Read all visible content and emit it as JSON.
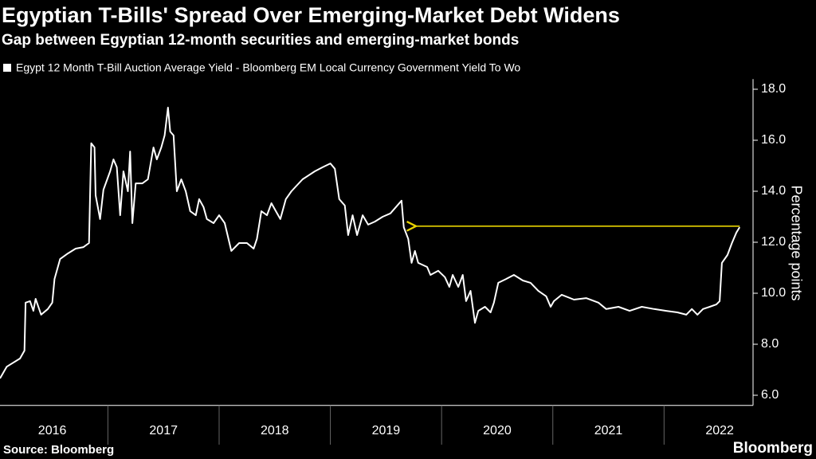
{
  "chart_data": {
    "type": "line",
    "title": "Egyptian T-Bills' Spread Over Emerging-Market Debt Widens",
    "subtitle": "Gap between Egyptian 12-month securities and emerging-market bonds",
    "y_label": "Percentage points",
    "x": [
      2016.03,
      2016.09,
      2016.21,
      2016.25,
      2016.26,
      2016.3,
      2016.33,
      2016.35,
      2016.4,
      2016.46,
      2016.5,
      2016.52,
      2016.57,
      2016.64,
      2016.71,
      2016.78,
      2016.83,
      2016.85,
      2016.88,
      2016.89,
      2016.93,
      2016.96,
      2017.02,
      2017.05,
      2017.08,
      2017.11,
      2017.14,
      2017.18,
      2017.2,
      2017.22,
      2017.25,
      2017.31,
      2017.36,
      2017.41,
      2017.44,
      2017.48,
      2017.51,
      2017.54,
      2017.56,
      2017.59,
      2017.62,
      2017.66,
      2017.7,
      2017.74,
      2017.79,
      2017.82,
      2017.86,
      2017.89,
      2017.95,
      2018.0,
      2018.05,
      2018.11,
      2018.18,
      2018.25,
      2018.31,
      2018.34,
      2018.38,
      2018.43,
      2018.47,
      2018.51,
      2018.55,
      2018.6,
      2018.65,
      2018.75,
      2018.86,
      2018.93,
      2019.0,
      2019.04,
      2019.08,
      2019.13,
      2019.16,
      2019.2,
      2019.24,
      2019.29,
      2019.34,
      2019.4,
      2019.47,
      2019.54,
      2019.59,
      2019.64,
      2019.66,
      2019.7,
      2019.73,
      2019.76,
      2019.79,
      2019.87,
      2019.9,
      2019.97,
      2020.03,
      2020.07,
      2020.1,
      2020.15,
      2020.19,
      2020.22,
      2020.26,
      2020.3,
      2020.33,
      2020.39,
      2020.44,
      2020.47,
      2020.51,
      2020.58,
      2020.65,
      2020.73,
      2020.8,
      2020.87,
      2020.94,
      2020.98,
      2021.01,
      2021.08,
      2021.19,
      2021.3,
      2021.41,
      2021.48,
      2021.59,
      2021.69,
      2021.8,
      2021.91,
      2022.02,
      2022.12,
      2022.2,
      2022.25,
      2022.3,
      2022.35,
      2022.41,
      2022.47,
      2022.5,
      2022.52,
      2022.57,
      2022.61,
      2022.65,
      2022.68
    ],
    "series": [
      {
        "name": "Egypt 12 Month T-Bill Auction Average Yield - Bloomberg EM Local Currency Government Yield To Wo",
        "color": "#ffffff",
        "values": [
          6.66,
          7.12,
          7.44,
          7.75,
          9.63,
          9.69,
          9.31,
          9.78,
          9.16,
          9.38,
          9.63,
          10.56,
          11.34,
          11.56,
          11.75,
          11.81,
          11.97,
          15.88,
          15.72,
          13.84,
          12.91,
          14.06,
          14.78,
          15.25,
          14.94,
          13.06,
          14.78,
          14.0,
          15.56,
          12.75,
          14.31,
          14.31,
          14.47,
          15.72,
          15.25,
          15.72,
          16.19,
          17.28,
          16.34,
          16.19,
          14.0,
          14.47,
          14.0,
          13.22,
          13.06,
          13.69,
          13.38,
          12.91,
          12.75,
          13.06,
          12.75,
          11.66,
          11.97,
          11.97,
          11.75,
          12.13,
          13.22,
          13.06,
          13.53,
          13.22,
          12.91,
          13.69,
          14.0,
          14.47,
          14.78,
          14.94,
          15.09,
          14.88,
          13.69,
          13.44,
          12.28,
          13.06,
          12.28,
          13.06,
          12.69,
          12.81,
          13.0,
          13.13,
          13.38,
          13.63,
          12.59,
          12.13,
          11.19,
          11.66,
          11.19,
          11.03,
          10.72,
          10.88,
          10.63,
          10.25,
          10.72,
          10.25,
          10.72,
          9.69,
          10.09,
          8.84,
          9.31,
          9.47,
          9.25,
          9.63,
          10.41,
          10.56,
          10.72,
          10.5,
          10.41,
          10.09,
          9.88,
          9.47,
          9.69,
          9.94,
          9.75,
          9.81,
          9.63,
          9.38,
          9.47,
          9.31,
          9.47,
          9.38,
          9.31,
          9.25,
          9.16,
          9.38,
          9.16,
          9.38,
          9.47,
          9.56,
          9.69,
          11.19,
          11.5,
          11.97,
          12.38,
          12.59
        ]
      }
    ],
    "arrow": {
      "x": [
        2022.68,
        2019.77
      ],
      "y": 12.63,
      "color": "#e8d200"
    },
    "xlim": [
      2016.03,
      2022.8
    ],
    "xticks": [
      {
        "value": 2016,
        "label": "2016"
      },
      {
        "value": 2017,
        "label": "2017"
      },
      {
        "value": 2018,
        "label": "2018"
      },
      {
        "value": 2019,
        "label": "2019"
      },
      {
        "value": 2020,
        "label": "2020"
      },
      {
        "value": 2021,
        "label": "2021"
      },
      {
        "value": 2022,
        "label": "2022"
      }
    ],
    "ylim": [
      5.6,
      18.4
    ],
    "yticks": [
      {
        "value": 6,
        "label": "6.0"
      },
      {
        "value": 8,
        "label": "8.0"
      },
      {
        "value": 10,
        "label": "10.0"
      },
      {
        "value": 12,
        "label": "12.0"
      },
      {
        "value": 14,
        "label": "14.0"
      },
      {
        "value": 16,
        "label": "16.0"
      },
      {
        "value": 18,
        "label": "18.0"
      }
    ]
  },
  "footer": {
    "source": "Source: Bloomberg",
    "logo": "Bloomberg"
  }
}
